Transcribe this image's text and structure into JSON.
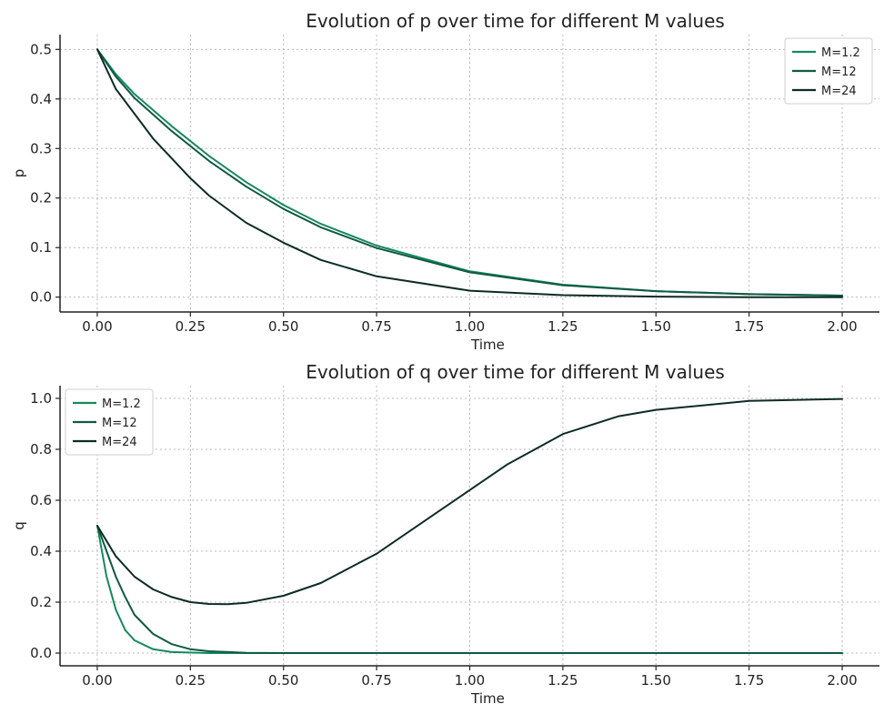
{
  "chart_data": [
    {
      "type": "line",
      "title": "Evolution of p over time for different M values",
      "xlabel": "Time",
      "ylabel": "p",
      "xlim": [
        -0.1,
        2.1
      ],
      "ylim": [
        -0.03,
        0.53
      ],
      "xticks": [
        0.0,
        0.25,
        0.5,
        0.75,
        1.0,
        1.25,
        1.5,
        1.75,
        2.0
      ],
      "xtick_labels": [
        "0.00",
        "0.25",
        "0.50",
        "0.75",
        "1.00",
        "1.25",
        "1.50",
        "1.75",
        "2.00"
      ],
      "yticks": [
        0.0,
        0.1,
        0.2,
        0.3,
        0.4,
        0.5
      ],
      "ytick_labels": [
        "0.0",
        "0.1",
        "0.2",
        "0.3",
        "0.4",
        "0.5"
      ],
      "grid": true,
      "legend_position": "top-right",
      "series": [
        {
          "name": "M=1.2",
          "color": "#16895c",
          "x": [
            0,
            0.05,
            0.1,
            0.2,
            0.3,
            0.4,
            0.5,
            0.6,
            0.75,
            1.0,
            1.25,
            1.5,
            1.75,
            2.0
          ],
          "y": [
            0.5,
            0.45,
            0.41,
            0.345,
            0.285,
            0.232,
            0.186,
            0.148,
            0.104,
            0.052,
            0.025,
            0.012,
            0.006,
            0.003
          ]
        },
        {
          "name": "M=12",
          "color": "#0f5a43",
          "x": [
            0,
            0.05,
            0.1,
            0.2,
            0.3,
            0.4,
            0.5,
            0.6,
            0.75,
            1.0,
            1.25,
            1.5,
            1.75,
            2.0
          ],
          "y": [
            0.5,
            0.445,
            0.402,
            0.335,
            0.275,
            0.223,
            0.178,
            0.141,
            0.099,
            0.05,
            0.024,
            0.012,
            0.006,
            0.003
          ]
        },
        {
          "name": "M=24",
          "color": "#0d2b24",
          "x": [
            0,
            0.05,
            0.1,
            0.15,
            0.2,
            0.25,
            0.3,
            0.4,
            0.5,
            0.6,
            0.75,
            1.0,
            1.25,
            1.5,
            1.75,
            2.0
          ],
          "y": [
            0.5,
            0.42,
            0.37,
            0.32,
            0.28,
            0.24,
            0.205,
            0.15,
            0.11,
            0.075,
            0.042,
            0.013,
            0.004,
            0.001,
            0.0,
            0.0
          ]
        }
      ]
    },
    {
      "type": "line",
      "title": "Evolution of q over time for different M values",
      "xlabel": "Time",
      "ylabel": "q",
      "xlim": [
        -0.1,
        2.1
      ],
      "ylim": [
        -0.05,
        1.05
      ],
      "xticks": [
        0.0,
        0.25,
        0.5,
        0.75,
        1.0,
        1.25,
        1.5,
        1.75,
        2.0
      ],
      "xtick_labels": [
        "0.00",
        "0.25",
        "0.50",
        "0.75",
        "1.00",
        "1.25",
        "1.50",
        "1.75",
        "2.00"
      ],
      "yticks": [
        0.0,
        0.2,
        0.4,
        0.6,
        0.8,
        1.0
      ],
      "ytick_labels": [
        "0.0",
        "0.2",
        "0.4",
        "0.6",
        "0.8",
        "1.0"
      ],
      "grid": true,
      "legend_position": "top-left",
      "series": [
        {
          "name": "M=1.2",
          "color": "#16895c",
          "x": [
            0,
            0.025,
            0.05,
            0.075,
            0.1,
            0.15,
            0.2,
            0.3,
            0.5,
            1.0,
            1.5,
            2.0
          ],
          "y": [
            0.5,
            0.3,
            0.17,
            0.09,
            0.05,
            0.015,
            0.004,
            0.0,
            0.0,
            0.0,
            0.0,
            0.0
          ]
        },
        {
          "name": "M=12",
          "color": "#0f5a43",
          "x": [
            0,
            0.025,
            0.05,
            0.075,
            0.1,
            0.15,
            0.2,
            0.25,
            0.3,
            0.4,
            0.5,
            1.0,
            1.5,
            2.0
          ],
          "y": [
            0.5,
            0.4,
            0.3,
            0.22,
            0.15,
            0.075,
            0.035,
            0.015,
            0.007,
            0.001,
            0.0,
            0.0,
            0.0,
            0.0
          ]
        },
        {
          "name": "M=24",
          "color": "#0d2b24",
          "x": [
            0,
            0.05,
            0.1,
            0.15,
            0.2,
            0.25,
            0.3,
            0.35,
            0.4,
            0.5,
            0.6,
            0.75,
            0.9,
            1.0,
            1.1,
            1.25,
            1.4,
            1.5,
            1.75,
            2.0
          ],
          "y": [
            0.5,
            0.38,
            0.3,
            0.25,
            0.22,
            0.2,
            0.193,
            0.192,
            0.197,
            0.225,
            0.275,
            0.39,
            0.54,
            0.64,
            0.74,
            0.86,
            0.93,
            0.955,
            0.99,
            0.998
          ]
        }
      ]
    }
  ]
}
